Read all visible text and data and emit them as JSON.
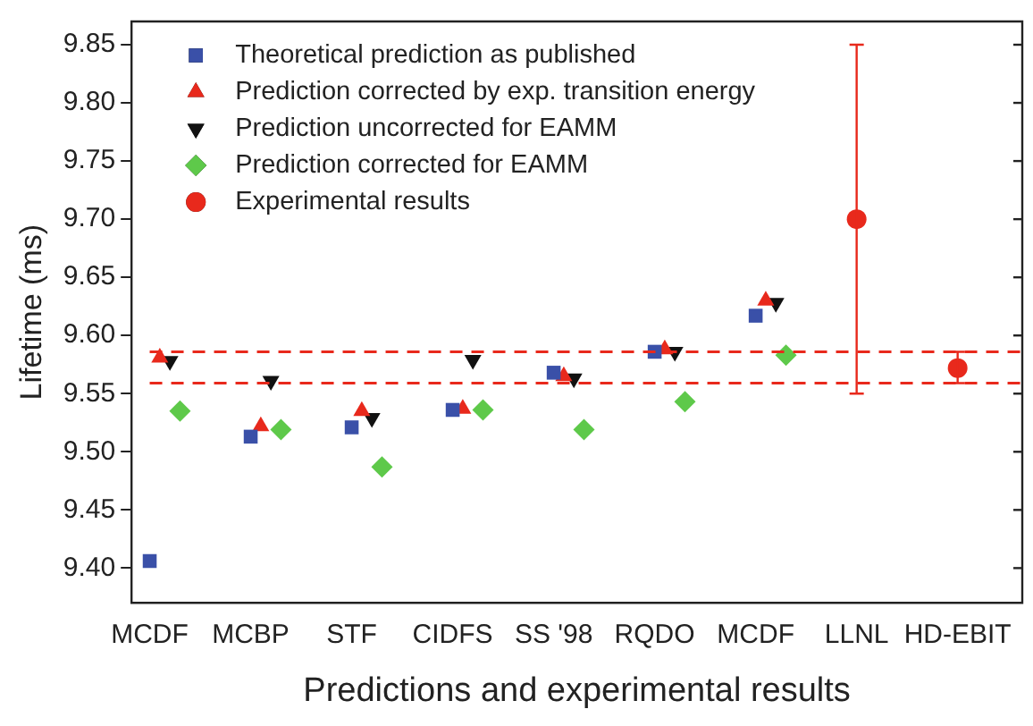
{
  "chart_data": {
    "type": "scatter",
    "xlabel": "Predictions and experimental results",
    "ylabel": "Lifetime (ms)",
    "categories": [
      "MCDF",
      "MCBP",
      "STF",
      "CIDFS",
      "SS '98",
      "RQDO",
      "MCDF",
      "LLNL",
      "HD-EBIT"
    ],
    "ylim": [
      9.37,
      9.87
    ],
    "yticks": [
      {
        "value": 9.4,
        "label": "9.40"
      },
      {
        "value": 9.45,
        "label": "9.45"
      },
      {
        "value": 9.5,
        "label": "9.50"
      },
      {
        "value": 9.55,
        "label": "9.55"
      },
      {
        "value": 9.6,
        "label": "9.60"
      },
      {
        "value": 9.65,
        "label": "9.65"
      },
      {
        "value": 9.7,
        "label": "9.70"
      },
      {
        "value": 9.75,
        "label": "9.75"
      },
      {
        "value": 9.8,
        "label": "9.80"
      },
      {
        "value": 9.85,
        "label": "9.85"
      }
    ],
    "grid": false,
    "legend": "top left",
    "series": [
      {
        "name": "Theoretical prediction as published",
        "color": "#3a50a8",
        "marker": "square",
        "values": [
          9.406,
          9.513,
          9.521,
          9.536,
          9.568,
          9.586,
          9.617,
          null,
          null
        ]
      },
      {
        "name": "Prediction corrected by exp. transition energy",
        "color": "#e8291c",
        "marker": "triangle",
        "values": [
          9.581,
          9.522,
          9.535,
          9.537,
          9.565,
          9.588,
          9.63,
          null,
          null
        ]
      },
      {
        "name": "Prediction uncorrected for EAMM",
        "color": "#111111",
        "marker": "triangle-down",
        "values": [
          9.578,
          9.561,
          9.529,
          9.579,
          9.563,
          9.586,
          9.628,
          null,
          null
        ]
      },
      {
        "name": "Prediction corrected for EAMM",
        "color": "#5ec94a",
        "marker": "diamond",
        "values": [
          9.535,
          9.519,
          9.487,
          9.536,
          9.519,
          9.543,
          9.583,
          null,
          null
        ]
      },
      {
        "name": "Experimental results",
        "color": "#e8291c",
        "marker": "circle",
        "values": [
          null,
          null,
          null,
          null,
          null,
          null,
          null,
          9.7,
          9.572
        ],
        "errors": [
          null,
          null,
          null,
          null,
          null,
          null,
          null,
          [
            9.55,
            9.85
          ],
          [
            9.559,
            9.586
          ]
        ]
      }
    ],
    "ref_lines": [
      {
        "axis": "y",
        "value": 9.586,
        "label": null,
        "color": "#e8291c",
        "line_style": "dashed"
      },
      {
        "axis": "y",
        "value": 9.559,
        "label": null,
        "color": "#e8291c",
        "line_style": "dashed"
      }
    ]
  }
}
